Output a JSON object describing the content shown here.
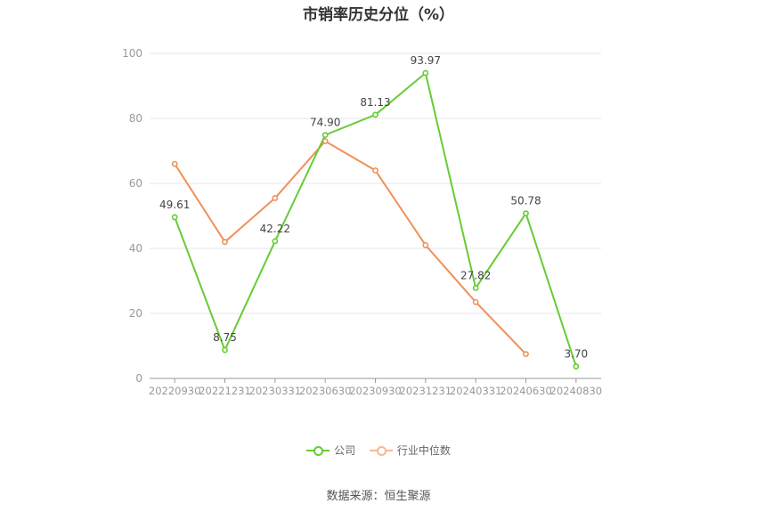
{
  "chart_data": {
    "type": "line",
    "title": "市销率历史分位（%）",
    "x": [
      "20220930",
      "20221231",
      "20230331",
      "20230630",
      "20230930",
      "20231231",
      "20240331",
      "20240630",
      "20240830"
    ],
    "ylim": [
      0,
      100
    ],
    "yticks": [
      0,
      20,
      40,
      60,
      80,
      100
    ],
    "grid": true,
    "legend": "bottom-center",
    "series": [
      {
        "name": "公司",
        "color": "#66cc33",
        "values": [
          49.61,
          8.75,
          42.22,
          74.9,
          81.13,
          93.97,
          27.82,
          50.78,
          3.7
        ],
        "labels": [
          "49.61",
          "8.75",
          "42.22",
          "74.90",
          "81.13",
          "93.97",
          "27.82",
          "50.78",
          "3.70"
        ]
      },
      {
        "name": "行业中位数",
        "color": "#f0905a",
        "values": [
          66.0,
          42.0,
          55.5,
          73.0,
          64.0,
          41.0,
          23.5,
          7.5,
          null
        ]
      }
    ]
  },
  "source": "数据来源：恒生聚源"
}
